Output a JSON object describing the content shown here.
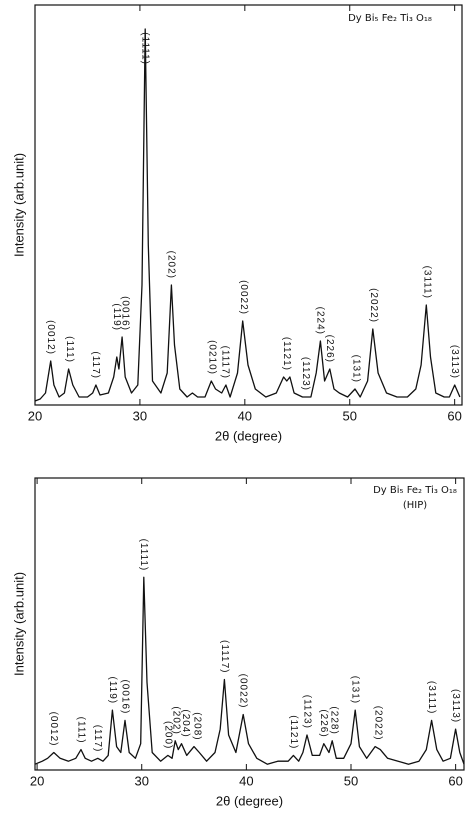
{
  "chart_data": [
    {
      "type": "line",
      "title": "Dy Bi₅ Fe₂ Ti₃ O₁₈",
      "x_label": "2θ (degree)",
      "y_label": "Intensity (arb.unit)",
      "color": "#111111",
      "xlim": [
        20,
        60.7
      ],
      "ylim": [
        0,
        100
      ],
      "xticks": [
        20,
        30,
        40,
        50,
        60
      ],
      "x": [
        20,
        20.5,
        21,
        21.5,
        21.8,
        22.3,
        22.8,
        23.2,
        23.6,
        24.2,
        25,
        25.5,
        25.8,
        26.2,
        27,
        27.5,
        27.8,
        28,
        28.3,
        28.6,
        29.2,
        29.8,
        30.2,
        30.5,
        30.8,
        31.2,
        32,
        32.6,
        33,
        33.3,
        33.8,
        34.5,
        35,
        35.5,
        36.2,
        36.8,
        37.2,
        37.8,
        38.2,
        38.6,
        39.3,
        39.8,
        40.3,
        41,
        42,
        43,
        43.7,
        44,
        44.3,
        44.7,
        45.5,
        46.3,
        46.8,
        47.2,
        47.6,
        48.1,
        48.5,
        49,
        49.8,
        50.5,
        51,
        51.7,
        52.2,
        52.7,
        53.5,
        54.5,
        55.5,
        56.3,
        56.8,
        57.3,
        57.7,
        58.2,
        59,
        59.5,
        60,
        60.5
      ],
      "values": [
        1,
        1.5,
        3,
        11,
        5,
        2,
        3,
        9,
        5,
        2,
        2,
        3,
        5,
        2.5,
        3,
        7,
        12,
        9,
        17,
        7,
        3,
        5,
        30,
        94,
        40,
        6,
        3,
        8,
        30,
        15,
        4,
        2,
        3,
        2,
        2,
        6,
        4,
        3,
        5,
        2,
        8,
        21,
        10,
        4,
        2,
        3,
        7,
        6,
        7,
        3,
        2,
        2,
        8,
        16,
        6,
        9,
        4,
        3,
        2,
        4,
        2,
        6,
        19,
        8,
        3,
        2,
        2,
        4,
        10,
        25,
        12,
        3,
        2,
        2,
        5,
        2
      ],
      "annotations": [
        {
          "text": "(0012)",
          "x": 21.5
        },
        {
          "text": "(111)",
          "x": 23.3
        },
        {
          "text": "(117)",
          "x": 25.8
        },
        {
          "text": "(119)",
          "x": 27.8
        },
        {
          "text": "(0016)",
          "x": 28.6
        },
        {
          "text": "(1111)",
          "x": 30.5
        },
        {
          "text": "(202)",
          "x": 33
        },
        {
          "text": "(0210)",
          "x": 36.9
        },
        {
          "text": "(1117)",
          "x": 38.1
        },
        {
          "text": "(0022)",
          "x": 39.9
        },
        {
          "text": "(1121)",
          "x": 44
        },
        {
          "text": "(1123)",
          "x": 45.8
        },
        {
          "text": "(224)",
          "x": 47.2
        },
        {
          "text": "(226)",
          "x": 48.1
        },
        {
          "text": "(131)",
          "x": 50.6
        },
        {
          "text": "(2022)",
          "x": 52.3
        },
        {
          "text": "(3111)",
          "x": 57.4
        },
        {
          "text": "(3113)",
          "x": 60
        }
      ]
    },
    {
      "type": "line",
      "title": "Dy Bi₅ Fe₂ Ti₃ O₁₈",
      "subtitle": "(HIP)",
      "x_label": "2θ (degree)",
      "y_label": "Intensity (arb.unit)",
      "color": "#111111",
      "xlim": [
        19.8,
        60.8
      ],
      "ylim": [
        0,
        100
      ],
      "xticks": [
        20,
        30,
        40,
        50,
        60
      ],
      "x": [
        19.8,
        20.5,
        21,
        21.6,
        22.2,
        23,
        23.7,
        24.2,
        24.6,
        25.2,
        25.8,
        26.3,
        26.8,
        27.2,
        27.6,
        28,
        28.4,
        28.8,
        29.4,
        29.9,
        30.2,
        30.5,
        31,
        31.8,
        32.5,
        32.9,
        33.2,
        33.5,
        33.8,
        34.3,
        35,
        35.5,
        36.2,
        37,
        37.5,
        37.9,
        38.3,
        39,
        39.7,
        40.2,
        41,
        42,
        43,
        44,
        44.5,
        45,
        45.4,
        45.8,
        46.3,
        47,
        47.4,
        47.9,
        48.2,
        48.6,
        49.3,
        50,
        50.4,
        50.8,
        51.5,
        52.3,
        52.8,
        53.5,
        54.5,
        55.5,
        56.5,
        57.2,
        57.7,
        58.2,
        58.8,
        59.5,
        60,
        60.4,
        60.8
      ],
      "values": [
        2,
        3,
        4,
        6,
        4,
        3,
        4,
        7,
        4,
        3,
        4,
        3,
        5,
        20.5,
        8,
        6,
        17,
        6,
        4,
        9,
        66,
        30,
        6,
        3,
        5,
        4,
        10,
        7,
        9,
        5,
        8,
        6,
        3,
        6,
        14,
        31,
        12,
        6,
        19,
        9,
        4,
        2,
        3,
        3,
        5,
        3,
        6,
        12,
        5,
        5,
        9,
        6,
        10,
        4,
        4,
        9,
        20.5,
        8,
        4,
        8,
        7,
        4,
        3,
        2,
        3,
        7,
        17,
        7,
        3,
        4,
        14,
        6,
        2
      ],
      "annotations": [
        {
          "text": "(0012)",
          "x": 21.6
        },
        {
          "text": "(111)",
          "x": 24.2
        },
        {
          "text": "(117)",
          "x": 25.8
        },
        {
          "text": "(119)",
          "x": 27.2
        },
        {
          "text": "(0016)",
          "x": 28.4
        },
        {
          "text": "(1111)",
          "x": 30.2
        },
        {
          "text": "(200)",
          "x": 32.5
        },
        {
          "text": "(202)",
          "x": 33.3
        },
        {
          "text": "(204)",
          "x": 34.2
        },
        {
          "text": "(208)",
          "x": 35.3
        },
        {
          "text": "(1117)",
          "x": 37.9
        },
        {
          "text": "(0022)",
          "x": 39.7
        },
        {
          "text": "(1121)",
          "x": 44.5
        },
        {
          "text": "(1123)",
          "x": 45.8
        },
        {
          "text": "(226)",
          "x": 47.4
        },
        {
          "text": "(228)",
          "x": 48.4
        },
        {
          "text": "(131)",
          "x": 50.4
        },
        {
          "text": "(2022)",
          "x": 52.6
        },
        {
          "text": "(3111)",
          "x": 57.7
        },
        {
          "text": "(3113)",
          "x": 60
        }
      ]
    }
  ]
}
